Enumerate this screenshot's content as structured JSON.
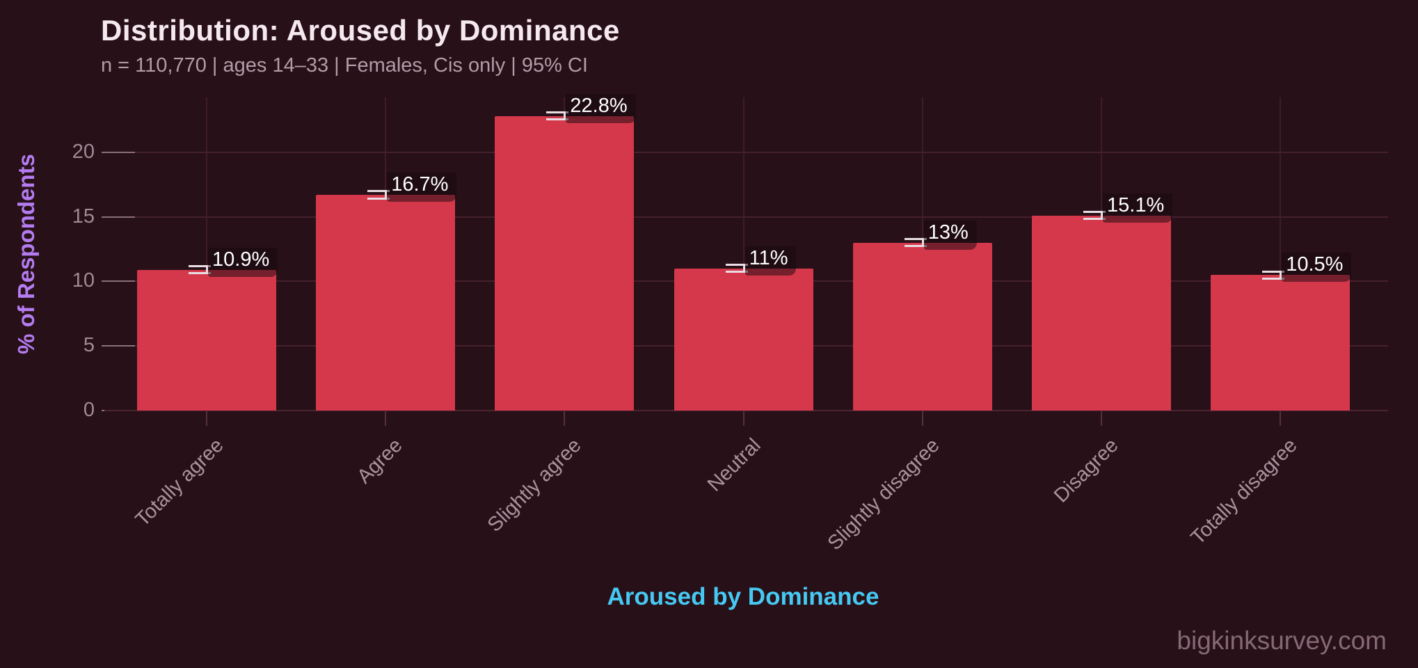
{
  "header": {
    "title": "Distribution: Aroused by Dominance",
    "subtitle": "n = 110,770  |  ages 14–33  |  Females, Cis only  |  95% CI"
  },
  "watermark": "bigkinksurvey.com",
  "chart_data": {
    "type": "bar",
    "title": "Distribution: Aroused by Dominance",
    "subtitle": "n = 110,770  |  ages 14–33  |  Females, Cis only  |  95% CI",
    "xlabel": "Aroused by Dominance",
    "ylabel": "% of Respondents",
    "categories": [
      "Totally agree",
      "Agree",
      "Slightly agree",
      "Neutral",
      "Slightly disagree",
      "Disagree",
      "Totally disagree"
    ],
    "values": [
      10.9,
      16.7,
      22.8,
      11,
      13,
      15.1,
      10.5
    ],
    "value_labels": [
      "10.9%",
      "16.7%",
      "22.8%",
      "11%",
      "13%",
      "15.1%",
      "10.5%"
    ],
    "ci_note": "95% CI whiskers shown at bar tops",
    "ci_halfwidth_est": 0.3,
    "yticks": [
      0,
      5,
      10,
      15,
      20
    ],
    "ylim": [
      0,
      24.2
    ],
    "grid": true,
    "legend_position": "none",
    "colors": {
      "background": "#281019",
      "bar": "#d5384b",
      "title": "#f5e9ef",
      "subtitle": "#b49ba6",
      "y_axis_title": "#b47cf0",
      "x_axis_title": "#45c9f2",
      "tick_labels": "#a18a94",
      "gridline": "#45202c",
      "error_bar": "#e9dde3",
      "value_label_text": "#ffffff",
      "watermark": "#856974"
    }
  }
}
